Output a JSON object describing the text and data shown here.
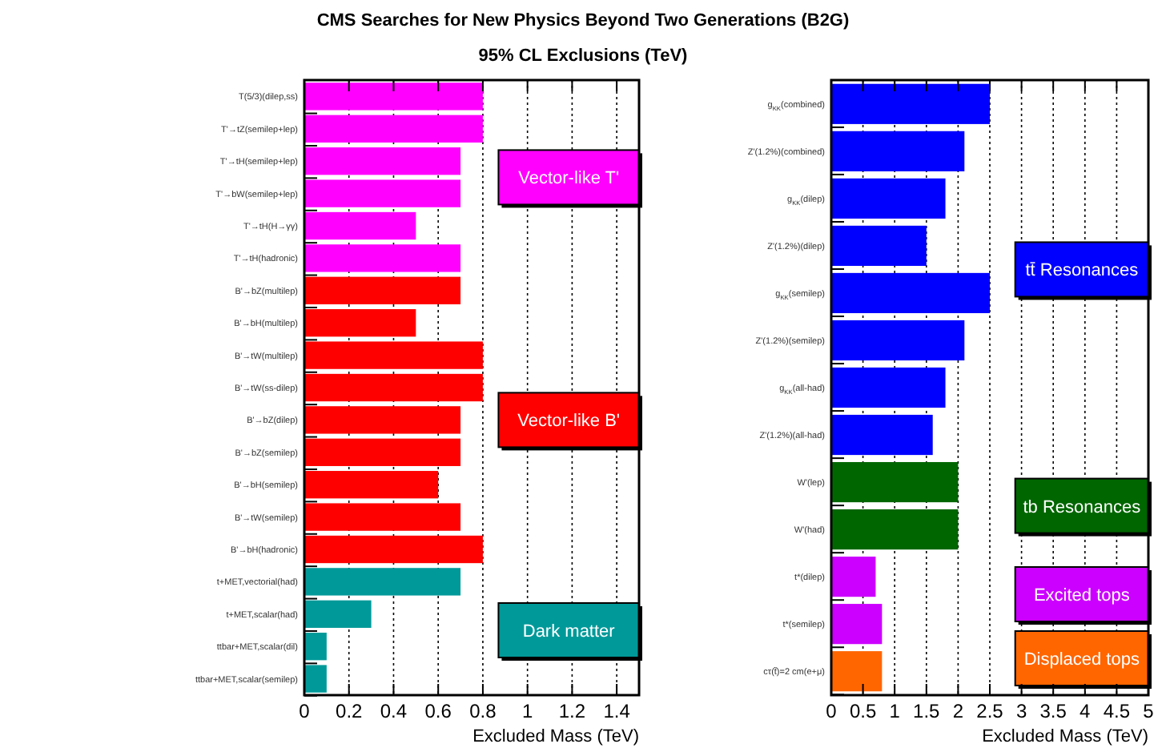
{
  "chart_data": [
    {
      "type": "bar",
      "orientation": "horizontal",
      "title": "CMS Searches for New Physics Beyond Two Generations (B2G)",
      "subtitle": "95% CL Exclusions (TeV)",
      "xlabel": "Excluded Mass (TeV)",
      "categories": [
        "T(5/3)(dilep,ss)",
        "T'→tZ(semilep+lep)",
        "T'→tH(semilep+lep)",
        "T'→bW(semilep+lep)",
        "T'→tH(H→γγ)",
        "T'→tH(hadronic)",
        "B'→bZ(multilep)",
        "B'→bH(multilep)",
        "B'→tW(multilep)",
        "B'→tW(ss-dilep)",
        "B'→bZ(dilep)",
        "B'→bZ(semilep)",
        "B'→bH(semilep)",
        "B'→tW(semilep)",
        "B'→bH(hadronic)",
        "t+MET,vectorial(had)",
        "t+MET,scalar(had)",
        "ttbar+MET,scalar(dil)",
        "ttbar+MET,scalar(semilep)"
      ],
      "series": [
        {
          "name": "Vector-like T'",
          "color": "#ff00ff",
          "values": [
            0.8,
            0.8,
            0.7,
            0.7,
            0.5,
            0.7,
            null,
            null,
            null,
            null,
            null,
            null,
            null,
            null,
            null,
            null,
            null,
            null,
            null
          ]
        },
        {
          "name": "Vector-like B'",
          "color": "#ff0000",
          "values": [
            null,
            null,
            null,
            null,
            null,
            null,
            0.7,
            0.5,
            0.8,
            0.8,
            0.7,
            0.7,
            0.6,
            0.7,
            0.8,
            null,
            null,
            null,
            null
          ]
        },
        {
          "name": "Dark matter",
          "color": "#009999",
          "values": [
            null,
            null,
            null,
            null,
            null,
            null,
            null,
            null,
            null,
            null,
            null,
            null,
            null,
            null,
            null,
            0.7,
            0.3,
            0.1,
            0.1
          ]
        }
      ],
      "xlim": [
        0,
        1.5
      ],
      "xticks": [
        0,
        0.2,
        0.4,
        0.6,
        0.8,
        1,
        1.2,
        1.4
      ],
      "grid": "x",
      "legend": "right"
    },
    {
      "type": "bar",
      "orientation": "horizontal",
      "xlabel": "Excluded Mass (TeV)",
      "categories": [
        "g$_{KK}$(combined)",
        "Z'(1.2%)(combined)",
        "g$_{KK}$(dilep)",
        "Z'(1.2%)(dilep)",
        "g$_{KK}$(semilep)",
        "Z'(1.2%)(semilep)",
        "g$_{KK}$(all-had)",
        "Z'(1.2%)(all-had)",
        "W'(lep)",
        "W'(had)",
        "t*(dilep)",
        "t*(semilep)",
        "cτ(t̃)=2 cm(e+μ)"
      ],
      "series": [
        {
          "name": "tt̄ Resonances",
          "color": "#0000ff",
          "values": [
            2.5,
            2.1,
            1.8,
            1.5,
            2.5,
            2.1,
            1.8,
            1.6,
            null,
            null,
            null,
            null,
            null
          ]
        },
        {
          "name": "tb Resonances",
          "color": "#006600",
          "values": [
            null,
            null,
            null,
            null,
            null,
            null,
            null,
            null,
            2.0,
            2.0,
            null,
            null,
            null
          ]
        },
        {
          "name": "Excited tops",
          "color": "#cc00ff",
          "values": [
            null,
            null,
            null,
            null,
            null,
            null,
            null,
            null,
            null,
            null,
            0.7,
            0.8,
            null
          ]
        },
        {
          "name": "Displaced tops",
          "color": "#ff6600",
          "values": [
            null,
            null,
            null,
            null,
            null,
            null,
            null,
            null,
            null,
            null,
            null,
            null,
            0.8
          ]
        }
      ],
      "xlim": [
        0,
        5
      ],
      "xticks": [
        0,
        0.5,
        1,
        1.5,
        2,
        2.5,
        3,
        3.5,
        4,
        4.5,
        5
      ],
      "grid": "x",
      "legend": "right"
    }
  ]
}
